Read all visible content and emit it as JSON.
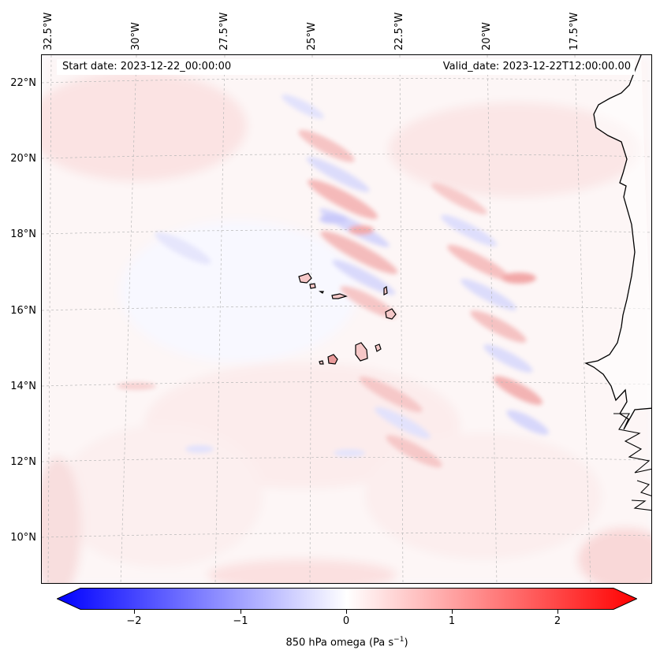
{
  "map": {
    "start_date": "Start date: 2023-12-22_00:00:00",
    "valid_date": "Valid_date: 2023-12-22T12:00:00.00",
    "lon_labels": [
      "32.5°W",
      "30°W",
      "27.5°W",
      "25°W",
      "22.5°W",
      "20°W",
      "17.5°W"
    ],
    "lat_labels": [
      "22°N",
      "20°N",
      "18°N",
      "16°N",
      "14°N",
      "12°N",
      "10°N"
    ],
    "field": "850 hPa omega",
    "colors": {
      "negative": "#0000ff",
      "neutral": "#ffffff",
      "positive": "#ff0000",
      "coast": "#000000",
      "grid": "#b0b0b0"
    }
  },
  "colorbar": {
    "label_text": "850 hPa omega (Pa s",
    "label_exp": "−1",
    "label_close": ")",
    "ticks": [
      "−2",
      "−1",
      "0",
      "1",
      "2"
    ],
    "range": [
      -2.8,
      2.8
    ]
  }
}
